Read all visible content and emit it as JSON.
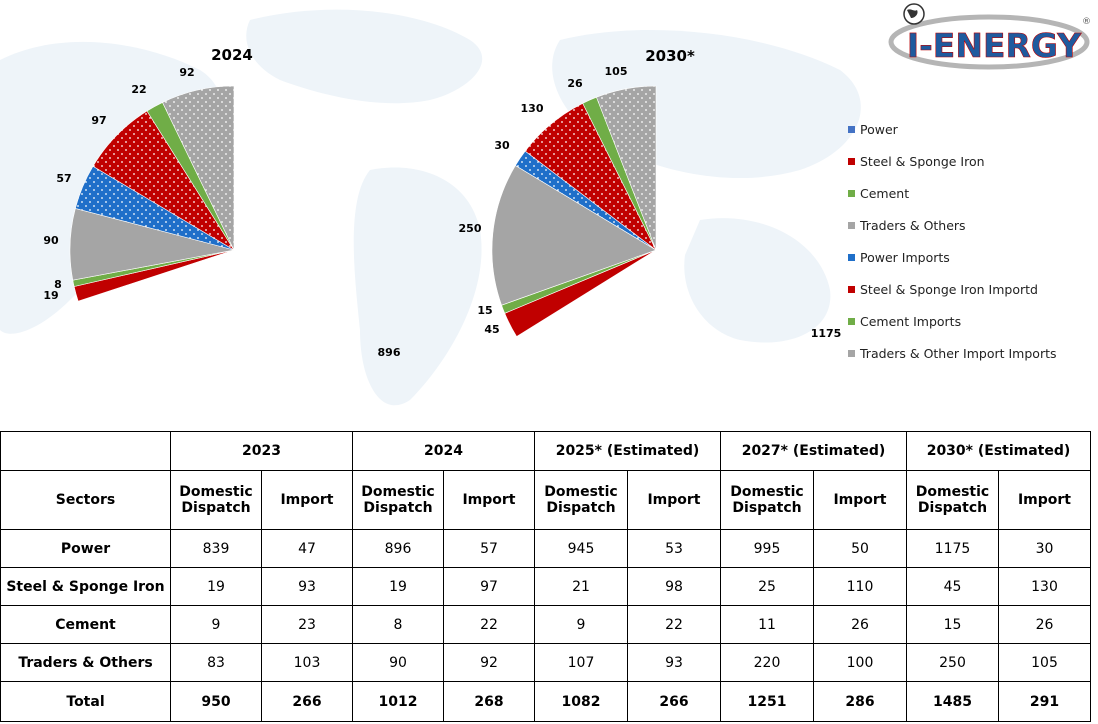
{
  "logo": {
    "text": "I-ENERGY",
    "registered": "®"
  },
  "legend": [
    {
      "label": "Power",
      "color": "#4472C4"
    },
    {
      "label": "Steel & Sponge Iron",
      "color": "#C00000"
    },
    {
      "label": "Cement",
      "color": "#70AD47"
    },
    {
      "label": "Traders & Others",
      "color": "#A5A5A5"
    },
    {
      "label": "Power Imports",
      "color": "#1F6FC9"
    },
    {
      "label": "Steel & Sponge Iron Importd",
      "color": "#C00000"
    },
    {
      "label": "Cement Imports",
      "color": "#70AD47"
    },
    {
      "label": "Traders & Other Import Imports",
      "color": "#A5A5A5"
    }
  ],
  "chart_data": [
    {
      "type": "pie",
      "title": "2024",
      "categories": [
        "Power",
        "Steel & Sponge Iron",
        "Cement",
        "Traders & Others",
        "Power Imports",
        "Steel & Sponge Iron Importd",
        "Cement Imports",
        "Traders & Other Import Imports"
      ],
      "values": [
        896,
        19,
        8,
        90,
        57,
        97,
        22,
        92
      ],
      "legend": "right"
    },
    {
      "type": "pie",
      "title": "2030*",
      "categories": [
        "Power",
        "Steel & Sponge Iron",
        "Cement",
        "Traders & Others",
        "Power Imports",
        "Steel & Sponge Iron Importd",
        "Cement Imports",
        "Traders & Other Import Imports"
      ],
      "values": [
        1175,
        45,
        15,
        250,
        30,
        130,
        26,
        105
      ],
      "legend": "right"
    }
  ],
  "table": {
    "corner_header": "",
    "sectors_header": "Sectors",
    "year_headers": [
      "2023",
      "2024",
      "2025* (Estimated)",
      "2027* (Estimated)",
      "2030* (Estimated)"
    ],
    "sub_headers": {
      "domestic_line1": "Domestic",
      "domestic_line2": "Dispatch",
      "import": "Import"
    },
    "rows": [
      {
        "sector": "Power",
        "values": [
          "839",
          "47",
          "896",
          "57",
          "945",
          "53",
          "995",
          "50",
          "1175",
          "30"
        ]
      },
      {
        "sector": "Steel & Sponge Iron",
        "values": [
          "19",
          "93",
          "19",
          "97",
          "21",
          "98",
          "25",
          "110",
          "45",
          "130"
        ]
      },
      {
        "sector": "Cement",
        "values": [
          "9",
          "23",
          "8",
          "22",
          "9",
          "22",
          "11",
          "26",
          "15",
          "26"
        ]
      },
      {
        "sector": "Traders & Others",
        "values": [
          "83",
          "103",
          "90",
          "92",
          "107",
          "93",
          "220",
          "100",
          "250",
          "105"
        ]
      }
    ],
    "total": {
      "sector": "Total",
      "values": [
        "950",
        "266",
        "1012",
        "268",
        "1082",
        "266",
        "1251",
        "286",
        "1485",
        "291"
      ]
    }
  }
}
